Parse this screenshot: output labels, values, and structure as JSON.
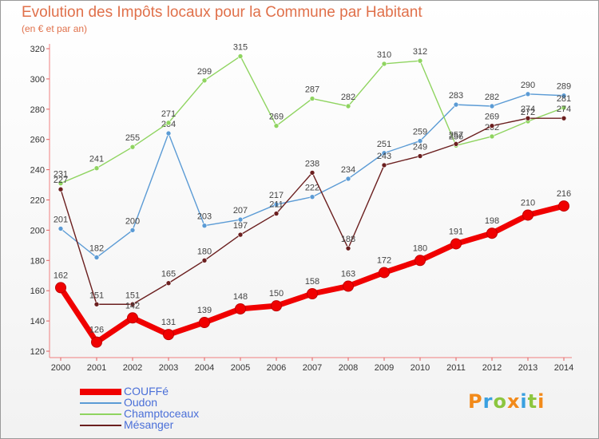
{
  "title": "Evolution des Impôts locaux pour la Commune par Habitant",
  "subtitle": "(en € et par an)",
  "logo_text": "Proxiti",
  "chart_data": {
    "type": "line",
    "title": "Evolution des Impôts locaux pour la Commune par Habitant",
    "subtitle": "(en € et par an)",
    "x": [
      "2000",
      "2001",
      "2002",
      "2003",
      "2004",
      "2005",
      "2006",
      "2007",
      "2008",
      "2009",
      "2010",
      "2011",
      "2012",
      "2013",
      "2014"
    ],
    "ylim": [
      120,
      320
    ],
    "yticks": [
      120,
      140,
      160,
      180,
      200,
      220,
      240,
      260,
      280,
      300,
      320
    ],
    "grid": false,
    "legend_position": "bottom-left",
    "series": [
      {
        "name": "COUFFé",
        "color": "#f00000",
        "values": [
          162,
          126,
          142,
          131,
          139,
          148,
          150,
          158,
          163,
          172,
          180,
          191,
          198,
          210,
          216
        ]
      },
      {
        "name": "Oudon",
        "color": "#5b9bd5",
        "values": [
          201,
          182,
          200,
          264,
          203,
          207,
          217,
          222,
          234,
          251,
          259,
          283,
          282,
          290,
          289
        ]
      },
      {
        "name": "Champtoceaux",
        "color": "#8fd460",
        "values": [
          231,
          241,
          255,
          271,
          299,
          315,
          269,
          287,
          282,
          310,
          312,
          256,
          262,
          272,
          281
        ]
      },
      {
        "name": "Mésanger",
        "color": "#6b1f1f",
        "values": [
          227,
          151,
          151,
          165,
          180,
          197,
          211,
          238,
          188,
          243,
          249,
          257,
          269,
          274,
          274
        ]
      }
    ]
  }
}
